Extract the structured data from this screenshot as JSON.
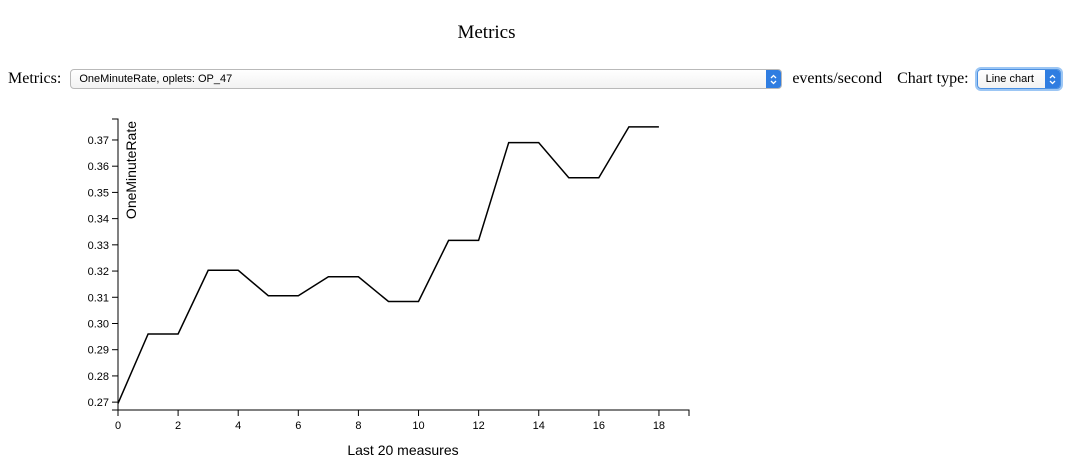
{
  "page": {
    "title": "Metrics"
  },
  "controls": {
    "metrics_label": "Metrics:",
    "metric_selected": "OneMinuteRate, oplets: OP_47",
    "units": "events/second",
    "chart_type_label": "Chart type:",
    "chart_type_selected": "Line chart"
  },
  "icons": {
    "select_arrows": "up-down-chevron-icon"
  },
  "chart_data": {
    "type": "line",
    "xlabel": "Last 20 measures",
    "ylabel": "OneMinuteRate",
    "xlim": [
      0,
      19
    ],
    "ylim": [
      0.267,
      0.378
    ],
    "x_ticks": [
      0,
      2,
      4,
      6,
      8,
      10,
      12,
      14,
      16,
      18
    ],
    "y_ticks": [
      "0.27",
      "0.28",
      "0.29",
      "0.30",
      "0.31",
      "0.32",
      "0.33",
      "0.34",
      "0.35",
      "0.36",
      "0.37"
    ],
    "grid": false,
    "series": [
      {
        "x": [
          0,
          1,
          2,
          3,
          4,
          5,
          6,
          7,
          8,
          9,
          10,
          11,
          12,
          13,
          14,
          15,
          16,
          17,
          18
        ],
        "values": [
          0.2695,
          0.296,
          0.296,
          0.3203,
          0.3203,
          0.3106,
          0.3106,
          0.3178,
          0.3178,
          0.3084,
          0.3084,
          0.3317,
          0.3317,
          0.369,
          0.369,
          0.3556,
          0.3556,
          0.375,
          0.375
        ],
        "color": "#000000"
      }
    ]
  }
}
